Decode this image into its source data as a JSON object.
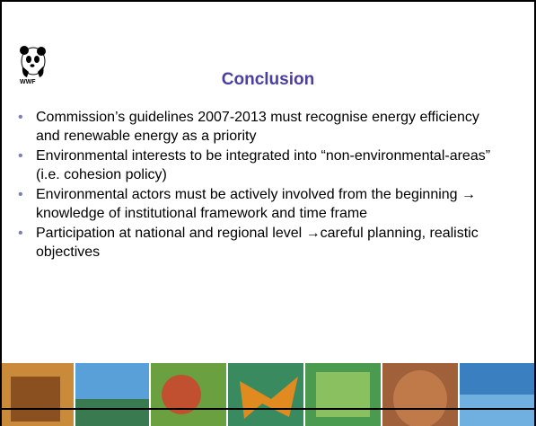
{
  "logo": {
    "text": "WWF"
  },
  "title": "Conclusion",
  "bullets": [
    "Commission’s guidelines 2007-2013 must recognise energy efficiency and renewable energy as a priority",
    "Environmental interests to be integrated into “non-environmental-areas” (i.e. cohesion policy)",
    "Environmental actors must be actively involved from the beginning → knowledge of institutional framework and time frame",
    "Participation at national and regional level →careful planning, realistic objectives"
  ]
}
